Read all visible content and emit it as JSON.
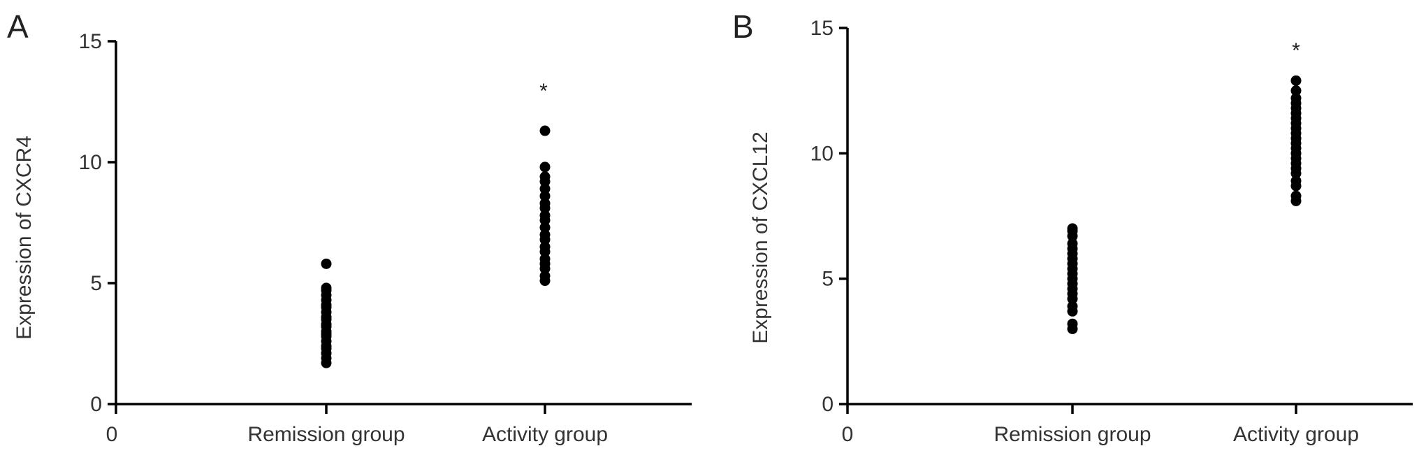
{
  "panels": [
    {
      "letter": "A",
      "chart_data": {
        "type": "scatter",
        "ylabel": "Expression of CXCR4",
        "ylim": [
          0,
          15
        ],
        "yticks": [
          "0",
          "5",
          "10",
          "15"
        ],
        "x_origin_label": "0",
        "categories": [
          "Remission group",
          "Activity group"
        ],
        "significance": [
          "",
          "*"
        ],
        "series": [
          {
            "category": "Remission group",
            "values": [
              1.7,
              1.9,
              2.1,
              2.3,
              2.4,
              2.6,
              2.8,
              2.9,
              3.0,
              3.2,
              3.3,
              3.5,
              3.6,
              3.8,
              4.0,
              4.1,
              4.3,
              4.5,
              4.7,
              4.8,
              5.8
            ]
          },
          {
            "category": "Activity group",
            "values": [
              5.1,
              5.3,
              5.6,
              5.8,
              6.0,
              6.3,
              6.5,
              6.8,
              7.0,
              7.3,
              7.6,
              7.8,
              8.1,
              8.3,
              8.6,
              8.9,
              9.2,
              9.4,
              9.8,
              11.3
            ]
          }
        ]
      }
    },
    {
      "letter": "B",
      "chart_data": {
        "type": "scatter",
        "ylabel": "Expression of CXCL12",
        "ylim": [
          0,
          15
        ],
        "yticks": [
          "0",
          "5",
          "10",
          "15"
        ],
        "x_origin_label": "0",
        "categories": [
          "Remission group",
          "Activity group"
        ],
        "significance": [
          "",
          "*"
        ],
        "series": [
          {
            "category": "Remission group",
            "values": [
              3.0,
              3.2,
              3.7,
              3.9,
              4.2,
              4.4,
              4.6,
              4.8,
              5.0,
              5.2,
              5.4,
              5.6,
              5.8,
              6.0,
              6.2,
              6.4,
              6.7,
              6.9,
              7.0
            ]
          },
          {
            "category": "Activity group",
            "values": [
              8.1,
              8.3,
              8.7,
              8.9,
              9.2,
              9.4,
              9.6,
              9.8,
              10.0,
              10.2,
              10.4,
              10.6,
              10.8,
              11.0,
              11.2,
              11.4,
              11.6,
              11.8,
              12.0,
              12.2,
              12.5,
              12.9
            ]
          }
        ]
      }
    }
  ]
}
